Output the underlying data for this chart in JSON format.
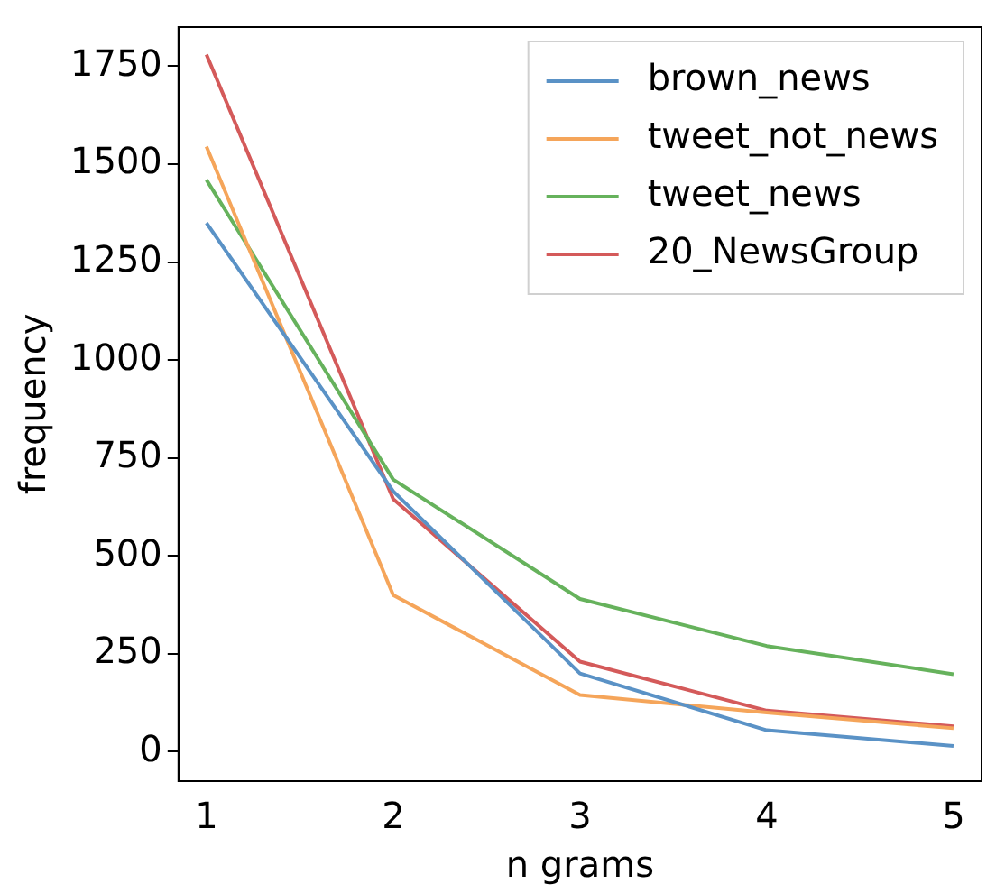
{
  "chart_data": {
    "type": "line",
    "xlabel": "n grams",
    "ylabel": "frequency",
    "x": [
      1,
      2,
      3,
      4,
      5
    ],
    "series": [
      {
        "name": "brown_news",
        "color": "#5a92c6",
        "values": [
          1350,
          665,
          200,
          55,
          15
        ]
      },
      {
        "name": "tweet_not_news",
        "color": "#f5a55a",
        "values": [
          1545,
          400,
          145,
          100,
          60
        ]
      },
      {
        "name": "tweet_news",
        "color": "#66b25c",
        "values": [
          1460,
          695,
          390,
          270,
          198
        ]
      },
      {
        "name": "20_NewsGroup",
        "color": "#d45a5a",
        "values": [
          1780,
          645,
          230,
          105,
          65
        ]
      }
    ],
    "xlim": [
      0.85,
      5.15
    ],
    "xticks": [
      1,
      2,
      3,
      4,
      5
    ],
    "ylim": [
      -75,
      1850
    ],
    "yticks": [
      0,
      250,
      500,
      750,
      1000,
      1250,
      1500,
      1750
    ],
    "grid": false,
    "legend": "top right",
    "marker": "none",
    "line_style": "solid"
  }
}
